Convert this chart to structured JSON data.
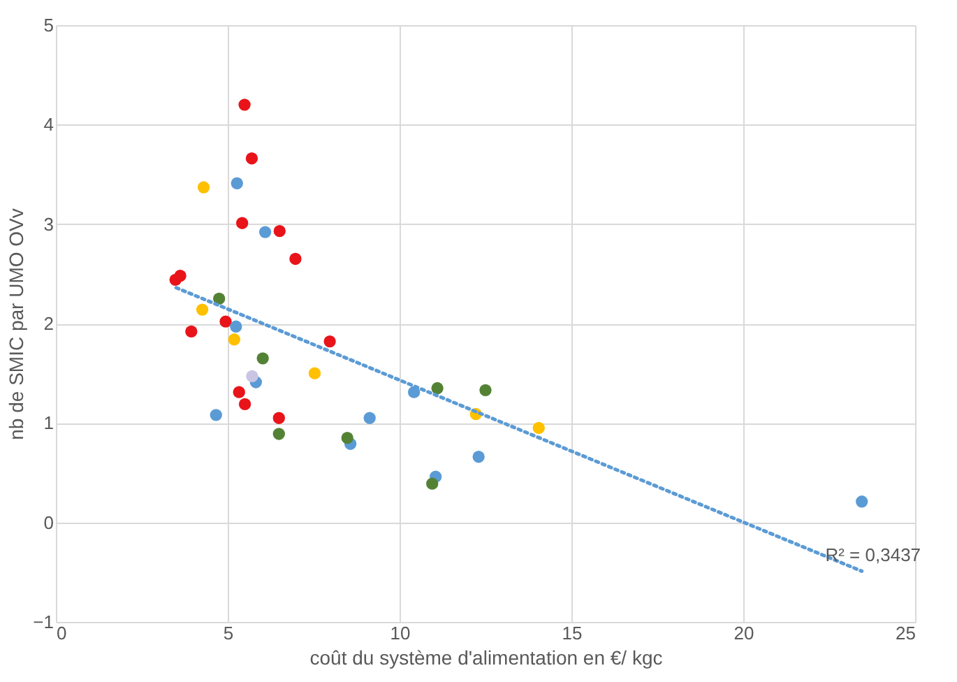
{
  "chart_data": {
    "type": "scatter",
    "xlabel": "coût du système d'alimentation en €/ kgc",
    "ylabel": "nb de SMIC par  UMO OVv",
    "xlim": [
      0,
      25
    ],
    "xticks": [
      0,
      5,
      10,
      15,
      20,
      25
    ],
    "ylim": [
      -1,
      5
    ],
    "yticks": [
      -1,
      0,
      1,
      2,
      3,
      4,
      5
    ],
    "grid": true,
    "marker": "circle",
    "series": [
      {
        "color": "#e8141a",
        "x": [
          5.49,
          5.7,
          5.42,
          6.51,
          6.97,
          3.48,
          3.62,
          4.94,
          3.94,
          7.97,
          5.33,
          5.5,
          6.49
        ],
        "values": [
          4.2,
          3.66,
          3.01,
          2.93,
          2.65,
          2.44,
          2.48,
          2.02,
          1.92,
          1.82,
          1.31,
          1.19,
          1.05
        ]
      },
      {
        "color": "#5b9bd5",
        "x": [
          5.27,
          6.09,
          5.24,
          5.82,
          4.66,
          9.13,
          10.42,
          12.3,
          11.05,
          8.57,
          23.45
        ],
        "values": [
          3.41,
          2.92,
          1.97,
          1.41,
          1.08,
          1.05,
          1.31,
          0.66,
          0.46,
          0.79,
          0.21
        ]
      },
      {
        "color": "#ffc000",
        "x": [
          4.3,
          4.26,
          5.19,
          7.53,
          12.22,
          14.05
        ],
        "values": [
          3.37,
          2.14,
          1.84,
          1.5,
          1.09,
          0.95
        ]
      },
      {
        "color": "#548235",
        "x": [
          4.75,
          6.02,
          6.49,
          11.1,
          12.5,
          8.48,
          10.95
        ],
        "values": [
          2.25,
          1.65,
          0.89,
          1.35,
          1.33,
          0.85,
          0.39
        ]
      },
      {
        "color": "#c9c5e3",
        "x": [
          5.71
        ],
        "values": [
          1.47
        ]
      },
      {
        "type": "line",
        "color": "#5b9bd5",
        "line_style": "dotted",
        "marker": "none",
        "x": [
          3.5,
          23.45
        ],
        "values": [
          2.36,
          -0.49
        ]
      }
    ],
    "annotations": [
      "R² = 0,3437"
    ]
  }
}
